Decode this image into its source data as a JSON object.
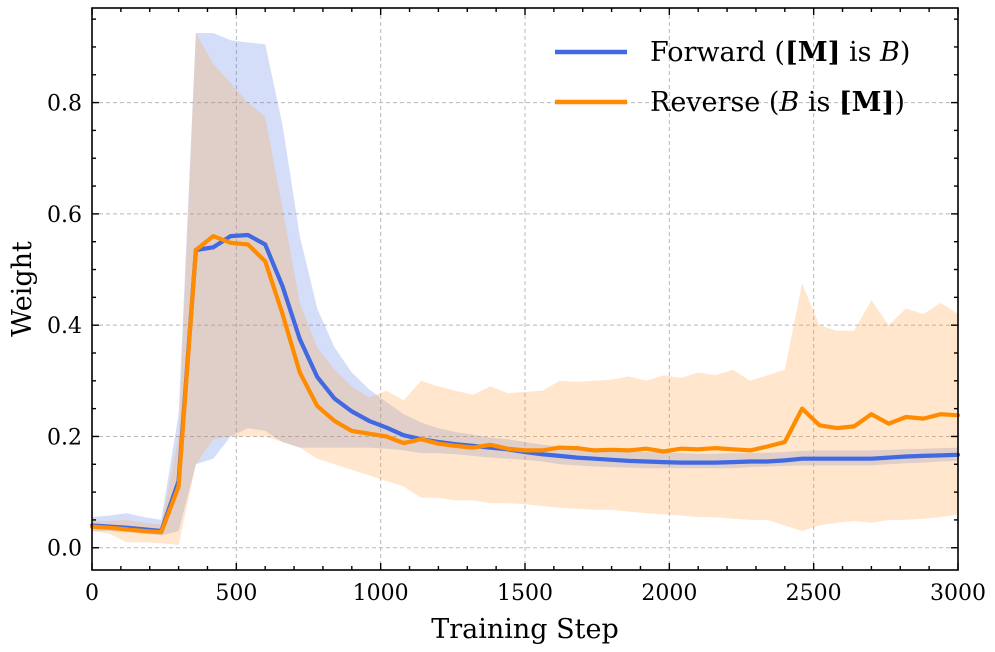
{
  "chart_data": {
    "type": "line",
    "xlabel": "Training Step",
    "ylabel": "Weight",
    "xlim": [
      0,
      3000
    ],
    "ylim": [
      -0.04,
      0.97
    ],
    "grid": true,
    "legend_position": "top-right",
    "x_ticks": [
      0,
      500,
      1000,
      1500,
      2000,
      2500,
      3000
    ],
    "x_tick_labels": [
      "0",
      "500",
      "1000",
      "1500",
      "2000",
      "2500",
      "3000"
    ],
    "y_ticks": [
      0.0,
      0.2,
      0.4,
      0.6,
      0.8
    ],
    "y_tick_labels": [
      "0.0",
      "0.2",
      "0.4",
      "0.6",
      "0.8"
    ],
    "series": [
      {
        "name": "Forward",
        "legend_prefix": "Forward (",
        "legend_bold": "[M]",
        "legend_mid": " is ",
        "legend_italic": "B",
        "legend_suffix": ")",
        "color": "#4169e1",
        "band_color": "#4169e1",
        "x": [
          0,
          60,
          120,
          180,
          240,
          300,
          360,
          420,
          480,
          540,
          600,
          660,
          720,
          780,
          840,
          900,
          960,
          1020,
          1080,
          1140,
          1200,
          1260,
          1320,
          1380,
          1440,
          1500,
          1560,
          1620,
          1680,
          1740,
          1800,
          1860,
          1920,
          1980,
          2040,
          2100,
          2160,
          2220,
          2280,
          2340,
          2400,
          2460,
          2520,
          2580,
          2640,
          2700,
          2760,
          2820,
          2880,
          2940,
          3000
        ],
        "y": [
          0.04,
          0.038,
          0.036,
          0.033,
          0.03,
          0.12,
          0.535,
          0.54,
          0.56,
          0.562,
          0.545,
          0.47,
          0.375,
          0.307,
          0.268,
          0.245,
          0.228,
          0.216,
          0.202,
          0.195,
          0.19,
          0.186,
          0.183,
          0.18,
          0.177,
          0.172,
          0.168,
          0.165,
          0.162,
          0.16,
          0.158,
          0.156,
          0.155,
          0.154,
          0.153,
          0.153,
          0.153,
          0.154,
          0.155,
          0.155,
          0.157,
          0.16,
          0.16,
          0.16,
          0.16,
          0.16,
          0.162,
          0.164,
          0.165,
          0.166,
          0.167
        ],
        "lower": [
          0.03,
          0.03,
          0.028,
          0.025,
          0.022,
          0.03,
          0.15,
          0.16,
          0.2,
          0.215,
          0.21,
          0.19,
          0.18,
          0.18,
          0.18,
          0.18,
          0.18,
          0.178,
          0.175,
          0.17,
          0.17,
          0.168,
          0.165,
          0.162,
          0.16,
          0.158,
          0.155,
          0.15,
          0.148,
          0.146,
          0.145,
          0.144,
          0.143,
          0.143,
          0.143,
          0.143,
          0.143,
          0.143,
          0.145,
          0.146,
          0.147,
          0.148,
          0.148,
          0.148,
          0.148,
          0.148,
          0.15,
          0.152,
          0.153,
          0.155,
          0.156
        ],
        "upper": [
          0.055,
          0.058,
          0.062,
          0.055,
          0.05,
          0.24,
          0.925,
          0.925,
          0.912,
          0.908,
          0.905,
          0.76,
          0.56,
          0.43,
          0.36,
          0.315,
          0.285,
          0.262,
          0.24,
          0.225,
          0.215,
          0.208,
          0.203,
          0.198,
          0.195,
          0.19,
          0.185,
          0.182,
          0.18,
          0.178,
          0.175,
          0.173,
          0.172,
          0.171,
          0.17,
          0.169,
          0.169,
          0.17,
          0.17,
          0.171,
          0.172,
          0.174,
          0.175,
          0.175,
          0.175,
          0.175,
          0.176,
          0.177,
          0.178,
          0.179,
          0.18
        ]
      },
      {
        "name": "Reverse",
        "legend_prefix": "Reverse (",
        "legend_italic": "B",
        "legend_mid": " is ",
        "legend_bold": "[M]",
        "legend_suffix": ")",
        "color": "#ff8c00",
        "band_color": "#ffa64d",
        "x": [
          0,
          60,
          120,
          180,
          240,
          300,
          360,
          420,
          480,
          540,
          600,
          660,
          720,
          780,
          840,
          900,
          960,
          1020,
          1080,
          1140,
          1200,
          1260,
          1320,
          1380,
          1440,
          1500,
          1560,
          1620,
          1680,
          1740,
          1800,
          1860,
          1920,
          1980,
          2040,
          2100,
          2160,
          2220,
          2280,
          2340,
          2400,
          2460,
          2520,
          2580,
          2640,
          2700,
          2760,
          2820,
          2880,
          2940,
          3000
        ],
        "y": [
          0.038,
          0.036,
          0.033,
          0.03,
          0.028,
          0.11,
          0.535,
          0.56,
          0.548,
          0.545,
          0.515,
          0.42,
          0.315,
          0.255,
          0.228,
          0.21,
          0.205,
          0.2,
          0.188,
          0.195,
          0.187,
          0.183,
          0.18,
          0.185,
          0.178,
          0.175,
          0.175,
          0.18,
          0.179,
          0.175,
          0.176,
          0.175,
          0.178,
          0.173,
          0.178,
          0.177,
          0.179,
          0.177,
          0.175,
          0.182,
          0.19,
          0.25,
          0.22,
          0.215,
          0.218,
          0.24,
          0.223,
          0.235,
          0.232,
          0.24,
          0.238
        ],
        "lower": [
          0.03,
          0.025,
          0.01,
          0.01,
          0.008,
          0.005,
          0.15,
          0.195,
          0.2,
          0.2,
          0.2,
          0.19,
          0.18,
          0.16,
          0.15,
          0.14,
          0.13,
          0.12,
          0.11,
          0.09,
          0.09,
          0.085,
          0.085,
          0.08,
          0.08,
          0.078,
          0.075,
          0.072,
          0.07,
          0.068,
          0.068,
          0.065,
          0.062,
          0.06,
          0.058,
          0.055,
          0.055,
          0.052,
          0.05,
          0.05,
          0.04,
          0.03,
          0.04,
          0.045,
          0.048,
          0.045,
          0.05,
          0.05,
          0.052,
          0.055,
          0.06
        ],
        "upper": [
          0.048,
          0.048,
          0.05,
          0.045,
          0.042,
          0.2,
          0.925,
          0.87,
          0.835,
          0.8,
          0.775,
          0.61,
          0.44,
          0.36,
          0.32,
          0.29,
          0.27,
          0.282,
          0.265,
          0.3,
          0.29,
          0.282,
          0.275,
          0.29,
          0.278,
          0.28,
          0.282,
          0.3,
          0.298,
          0.3,
          0.302,
          0.308,
          0.3,
          0.31,
          0.305,
          0.315,
          0.31,
          0.32,
          0.3,
          0.31,
          0.32,
          0.475,
          0.4,
          0.39,
          0.39,
          0.445,
          0.4,
          0.43,
          0.42,
          0.44,
          0.42
        ]
      }
    ]
  }
}
